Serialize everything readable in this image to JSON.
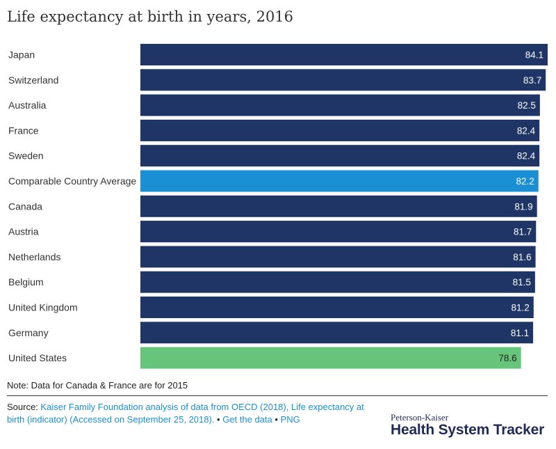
{
  "chart_data": {
    "type": "bar",
    "orientation": "horizontal",
    "title": "Life expectancy at birth in years, 2016",
    "categories": [
      "Japan",
      "Switzerland",
      "Australia",
      "France",
      "Sweden",
      "Comparable Country Average",
      "Canada",
      "Austria",
      "Netherlands",
      "Belgium",
      "United Kingdom",
      "Germany",
      "United States"
    ],
    "values": [
      84.1,
      83.7,
      82.5,
      82.4,
      82.4,
      82.2,
      81.9,
      81.7,
      81.6,
      81.5,
      81.2,
      81.1,
      78.6
    ],
    "value_labels": [
      "84.1",
      "83.7",
      "82.5",
      "82.4",
      "82.4",
      "82.2",
      "81.9",
      "81.7",
      "81.6",
      "81.5",
      "81.2",
      "81.1",
      "78.6"
    ],
    "colors": [
      "#1f3566",
      "#1f3566",
      "#1f3566",
      "#1f3566",
      "#1f3566",
      "#1a8fd4",
      "#1f3566",
      "#1f3566",
      "#1f3566",
      "#1f3566",
      "#1f3566",
      "#1f3566",
      "#66c57a"
    ],
    "label_colors": [
      "#ffffff",
      "#ffffff",
      "#ffffff",
      "#ffffff",
      "#ffffff",
      "#ffffff",
      "#ffffff",
      "#ffffff",
      "#ffffff",
      "#ffffff",
      "#ffffff",
      "#ffffff",
      "#222222"
    ],
    "xlim": [
      0,
      84.1
    ],
    "xlabel": "",
    "ylabel": "",
    "grid": false,
    "legend": "none"
  },
  "note": "Note: Data for Canada & France are for 2015",
  "source": {
    "prefix": "Source: ",
    "text": "Kaiser Family Foundation analysis of data from OECD (2018), Life expectancy at birth (indicator) (Accessed on September 25, 2018).",
    "separator1": " • ",
    "get_data": "Get the data",
    "separator2": " • ",
    "png": "PNG"
  },
  "logo": {
    "small": "Peterson-Kaiser",
    "big": "Health System Tracker"
  }
}
